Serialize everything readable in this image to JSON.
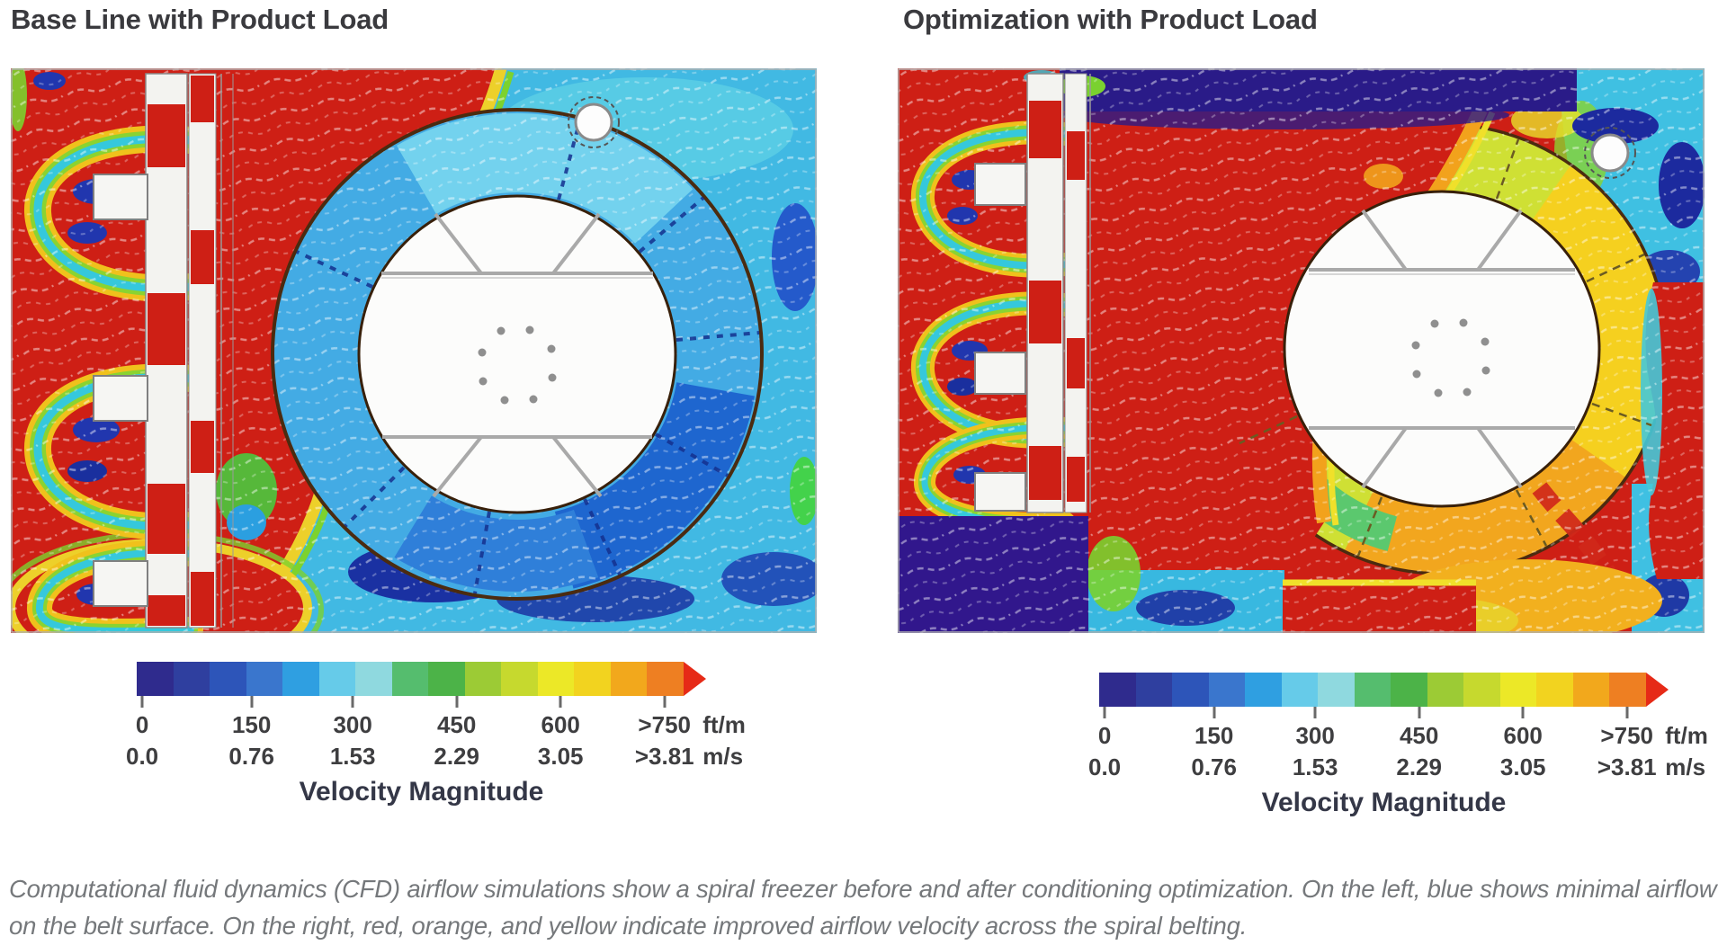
{
  "page": {
    "background": "#ffffff"
  },
  "panels": [
    {
      "key": "baseline",
      "title": "Base Line with Product Load"
    },
    {
      "key": "optimized",
      "title": "Optimization with Product Load"
    }
  ],
  "colorbar": {
    "title": "Velocity Magnitude",
    "ticks_top": [
      "0",
      "150",
      "300",
      "450",
      "600",
      ">750"
    ],
    "unit_top": "ft/m",
    "ticks_bottom": [
      "0.0",
      "0.76",
      "1.53",
      "2.29",
      "3.05",
      ">3.81"
    ],
    "unit_bottom": "m/s",
    "segments": [
      "#2f2b8d",
      "#2f3f9f",
      "#2d55b9",
      "#3a76cd",
      "#2f9fe1",
      "#66cbe9",
      "#8fd9df",
      "#55bd6e",
      "#4cb348",
      "#9ccb35",
      "#c6d92e",
      "#ece827",
      "#f2d31f",
      "#f2a81c",
      "#ee7f22"
    ],
    "arrow_color": "#e62a17"
  },
  "caption": "Computational fluid dynamics (CFD) airflow simulations show a spiral freezer before and after conditioning optimization. On the left, blue shows minimal airflow on the belt surface. On the right, red, orange, and yellow indicate improved airflow velocity across the spiral belting.",
  "colors": {
    "title_text": "#3a3a3e",
    "tick_text": "#3e3e40",
    "legend_title_text": "#343747",
    "caption_text": "#75787b",
    "high_velocity": "#ce1f15",
    "low_velocity": "#2f2b8d"
  },
  "chart_data": [
    {
      "type": "heatmap",
      "title": "Base Line with Product Load",
      "variable": "Velocity Magnitude",
      "colorbar_label": "Velocity Magnitude",
      "scale_ticks_ftm": [
        0,
        150,
        300,
        450,
        600,
        750
      ],
      "scale_ticks_ms": [
        0.0,
        0.76,
        1.53,
        2.29,
        3.05,
        3.81
      ],
      "scale_max_labels": [
        ">750 ft/m",
        ">3.81 m/s"
      ],
      "units": [
        "ft/m",
        "m/s"
      ],
      "legend_position": "below",
      "regions": [
        {
          "area": "spiral belt annulus (ring)",
          "color": "blue/cyan",
          "approx_velocity_ftm": "150-300"
        },
        {
          "area": "plenum left of spiral and upper plenum",
          "color": "red",
          "approx_velocity_ftm": ">750"
        },
        {
          "area": "evaporator coil jets along left wall",
          "color": "yellow/green/cyan horseshoe jets",
          "approx_velocity_ftm": "300-600"
        },
        {
          "area": "right edge and bottom perimeter",
          "color": "cyan with dark blue pockets",
          "approx_velocity_ftm": "0-300"
        },
        {
          "area": "spiral center hub",
          "color": "white (no data / structure)",
          "approx_velocity_ftm": "n/a"
        }
      ]
    },
    {
      "type": "heatmap",
      "title": "Optimization with Product Load",
      "variable": "Velocity Magnitude",
      "colorbar_label": "Velocity Magnitude",
      "scale_ticks_ftm": [
        0,
        150,
        300,
        450,
        600,
        750
      ],
      "scale_ticks_ms": [
        0.0,
        0.76,
        1.53,
        2.29,
        3.05,
        3.81
      ],
      "scale_max_labels": [
        ">750 ft/m",
        ">3.81 m/s"
      ],
      "units": [
        "ft/m",
        "m/s"
      ],
      "legend_position": "below",
      "regions": [
        {
          "area": "spiral belt annulus (ring)",
          "color": "yellow/orange/green",
          "approx_velocity_ftm": "450-750"
        },
        {
          "area": "plenum left of spiral",
          "color": "red",
          "approx_velocity_ftm": ">750"
        },
        {
          "area": "top strip and bottom-left corner",
          "color": "dark purple",
          "approx_velocity_ftm": "0-75"
        },
        {
          "area": "right edge mid-band",
          "color": "red strip",
          "approx_velocity_ftm": ">750"
        },
        {
          "area": "top-right corner near bolt hole",
          "color": "cyan/blue",
          "approx_velocity_ftm": "75-300"
        }
      ]
    }
  ]
}
